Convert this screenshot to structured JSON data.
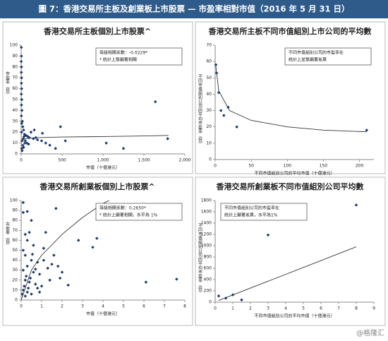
{
  "header": {
    "title": "圖 7：香港交易所主板及創業板上市股票 — 市盈率相對市值（2016 年 5 月 31 日）"
  },
  "watermark": "@格隆汇",
  "chart_data": [
    {
      "type": "scatter",
      "title": "香港交易所主板個別上市股票^",
      "x_label": "市值（十億港元）",
      "y_label": "市盈率（倍）",
      "annotation": [
        "等級相關系數：-0.0229*",
        "* 統計上無顯著相關"
      ],
      "annotation_corner": "top-right",
      "color": "#1f3b6e",
      "trend_color": "#333333",
      "xlim": [
        0,
        2000
      ],
      "xticks": [
        0,
        500,
        {
          "value": 1000,
          "label": "1,000"
        },
        {
          "value": 1500,
          "label": "1,500"
        },
        {
          "value": 2000,
          "label": "2,000"
        }
      ],
      "ylim": [
        0,
        100
      ],
      "yticks": [
        0,
        10,
        20,
        30,
        40,
        50,
        60,
        70,
        80,
        90,
        100
      ],
      "x": [
        2,
        3,
        1,
        4,
        2,
        5,
        3,
        6,
        2,
        8,
        4,
        10,
        3,
        15,
        6,
        20,
        30,
        5,
        40,
        60,
        80,
        100,
        150,
        200,
        250,
        120,
        180,
        300,
        350,
        50,
        70,
        90,
        10,
        25,
        35,
        45,
        480,
        540,
        1640,
        1040,
        1250,
        1790,
        420,
        260,
        160,
        20,
        8,
        12,
        30
      ],
      "y": [
        98,
        90,
        85,
        80,
        75,
        70,
        65,
        60,
        55,
        50,
        45,
        40,
        35,
        30,
        28,
        25,
        22,
        20,
        18,
        17,
        16,
        15,
        14,
        13,
        12,
        20,
        15,
        10,
        8,
        12,
        10,
        9,
        12,
        14,
        16,
        10,
        25,
        12,
        48,
        10,
        5,
        14,
        5,
        19,
        22,
        8,
        5,
        3,
        6
      ],
      "trend": {
        "x": [
          0,
          50,
          200,
          500,
          1000,
          1500,
          1800
        ],
        "y": [
          12,
          14,
          15,
          15.5,
          16,
          16.5,
          17
        ]
      }
    },
    {
      "type": "scatter",
      "title": "香港交易所主板不同市值組別上市公司的平均數",
      "x_label": "不同市值組別公司的平均市值（十億港元）",
      "y_label": "不同市值組別公司的平均市盈率（倍）",
      "annotation": [
        "不同市值組別公司的市盈率在",
        "統計上並無顯著差異"
      ],
      "annotation_corner": "top-right",
      "color": "#1f3b6e",
      "trend_color": "#333333",
      "xlim": [
        0,
        220
      ],
      "xticks": [
        0,
        50,
        100,
        150,
        200
      ],
      "ylim": [
        0,
        70
      ],
      "yticks": [
        0,
        10,
        20,
        30,
        40,
        50,
        60,
        70
      ],
      "x": [
        1,
        2,
        5,
        8,
        12,
        18,
        30,
        210
      ],
      "y": [
        58,
        53,
        41,
        30,
        27,
        32,
        20,
        18
      ],
      "trend": {
        "x": [
          1,
          5,
          20,
          50,
          100,
          150,
          210
        ],
        "y": [
          57,
          42,
          30,
          24,
          20,
          18,
          17
        ]
      }
    },
    {
      "type": "scatter",
      "title": "香港交易所創業板個別上市股票^",
      "x_label": "市值（十億港元）",
      "y_label": "市盈率（倍）",
      "annotation": [
        "等級相關系數：0.2650*",
        "* 統計上顯著相關，水平為 1%"
      ],
      "annotation_corner": "top-right",
      "color": "#1f3b6e",
      "trend_color": "#333333",
      "xlim": [
        0,
        8
      ],
      "xticks": [
        0,
        1,
        2,
        3,
        4,
        5,
        6,
        7,
        8
      ],
      "ylim": [
        0,
        100
      ],
      "yticks": [
        0,
        10,
        20,
        30,
        40,
        50,
        60,
        70,
        80,
        90,
        100
      ],
      "x": [
        0.1,
        0.3,
        0.1,
        0.5,
        1.7,
        0.4,
        0.2,
        1.2,
        1.1,
        0.3,
        0.6,
        0.1,
        0.2,
        0.5,
        0.8,
        0.3,
        0.1,
        0.6,
        0.9,
        1.3,
        1.5,
        1.8,
        0.2,
        0.4,
        0.7,
        1.0,
        0.1,
        0.3,
        0.5,
        0.2,
        0.8,
        1.9,
        2.0,
        2.3,
        2.8,
        3.7,
        3.5,
        6.1,
        7.6,
        0.15,
        0.25,
        0.45,
        0.35,
        0.05,
        1.6,
        1.4,
        0.9,
        1.1,
        0.7,
        0.55
      ],
      "y": [
        98,
        89,
        88,
        80,
        92,
        68,
        66,
        68,
        52,
        60,
        55,
        50,
        45,
        40,
        38,
        34,
        30,
        28,
        26,
        32,
        36,
        34,
        20,
        18,
        16,
        14,
        10,
        8,
        6,
        4,
        12,
        22,
        28,
        15,
        60,
        62,
        53,
        18,
        21,
        14,
        24,
        22,
        12,
        6,
        45,
        20,
        8,
        40,
        31,
        46
      ],
      "trend": {
        "x": [
          0,
          0.5,
          1,
          2,
          3,
          4,
          4.3
        ],
        "y": [
          0,
          30,
          45,
          66,
          83,
          97,
          100
        ]
      }
    },
    {
      "type": "scatter",
      "title": "香港交易所創業板不同市值組別公司平均數",
      "x_label": "不同市值組別公司的平均市值（十億港元）",
      "y_label": "不同市值組別公司的平均市盈率（倍）",
      "annotation": [
        "不同市值組別公司的市盈率在",
        "統計上顯著差異，水平為1%"
      ],
      "annotation_corner": "top-left",
      "color": "#1f3b6e",
      "trend_color": "#333333",
      "xlim": [
        0,
        9
      ],
      "xticks": [
        0,
        1,
        2,
        3,
        4,
        5,
        6,
        7,
        8,
        9
      ],
      "ylim": [
        0,
        1800
      ],
      "yticks": [
        0,
        200,
        400,
        600,
        800,
        1000,
        1200,
        1400,
        1600,
        1800
      ],
      "x": [
        0.2,
        0.6,
        1,
        1.5,
        3,
        8
      ],
      "y": [
        110,
        70,
        130,
        40,
        1190,
        1720
      ],
      "trend": {
        "x": [
          0.2,
          8
        ],
        "y": [
          30,
          980
        ]
      }
    }
  ]
}
